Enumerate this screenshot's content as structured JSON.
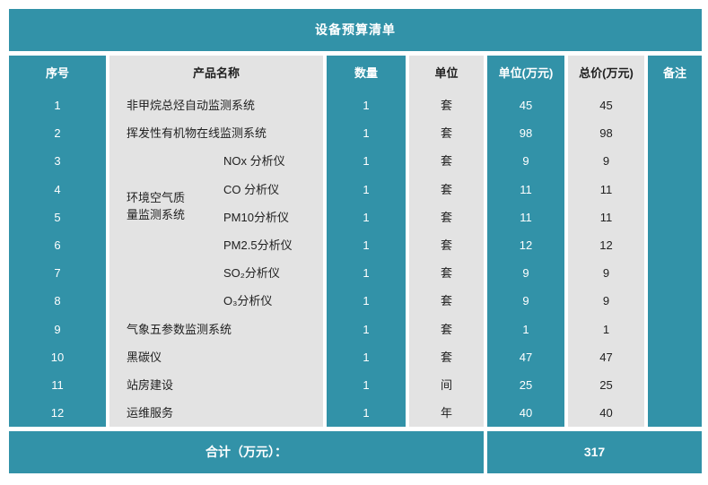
{
  "title": "设备预算清单",
  "colors": {
    "teal": "#3292a8",
    "gray": "#e3e3e3",
    "text_on_teal": "#ffffff",
    "text_on_gray": "#212121"
  },
  "table": {
    "headers": {
      "no": "序号",
      "product_name": "产品名称",
      "quantity": "数量",
      "unit": "单位",
      "unit_price": "单位(万元)",
      "total_price": "总价(万元)",
      "remark": "备注"
    },
    "group": {
      "label": "环境空气质量监测系统",
      "row_span": "3-8"
    },
    "rows": [
      {
        "no": "1",
        "name": "非甲烷总烃自动监测系统",
        "qty": "1",
        "unit": "套",
        "unit_price": "45",
        "total": "45",
        "remark": ""
      },
      {
        "no": "2",
        "name": "挥发性有机物在线监测系统",
        "qty": "1",
        "unit": "套",
        "unit_price": "98",
        "total": "98",
        "remark": ""
      },
      {
        "no": "3",
        "name": "NOx 分析仪",
        "qty": "1",
        "unit": "套",
        "unit_price": "9",
        "total": "9",
        "remark": ""
      },
      {
        "no": "4",
        "name": "CO 分析仪",
        "qty": "1",
        "unit": "套",
        "unit_price": "11",
        "total": "11",
        "remark": ""
      },
      {
        "no": "5",
        "name": "PM10分析仪",
        "qty": "1",
        "unit": "套",
        "unit_price": "11",
        "total": "11",
        "remark": ""
      },
      {
        "no": "6",
        "name": "PM2.5分析仪",
        "qty": "1",
        "unit": "套",
        "unit_price": "12",
        "total": "12",
        "remark": ""
      },
      {
        "no": "7",
        "name": "SO₂分析仪",
        "qty": "1",
        "unit": "套",
        "unit_price": "9",
        "total": "9",
        "remark": ""
      },
      {
        "no": "8",
        "name": "O₃分析仪",
        "qty": "1",
        "unit": "套",
        "unit_price": "9",
        "total": "9",
        "remark": ""
      },
      {
        "no": "9",
        "name": "气象五参数监测系统",
        "qty": "1",
        "unit": "套",
        "unit_price": "1",
        "total": "1",
        "remark": ""
      },
      {
        "no": "10",
        "name": "黑碳仪",
        "qty": "1",
        "unit": "套",
        "unit_price": "47",
        "total": "47",
        "remark": ""
      },
      {
        "no": "11",
        "name": "站房建设",
        "qty": "1",
        "unit": "间",
        "unit_price": "25",
        "total": "25",
        "remark": ""
      },
      {
        "no": "12",
        "name": "运维服务",
        "qty": "1",
        "unit": "年",
        "unit_price": "40",
        "total": "40",
        "remark": ""
      }
    ]
  },
  "footer": {
    "label": "合计（万元）：",
    "total": "317"
  }
}
